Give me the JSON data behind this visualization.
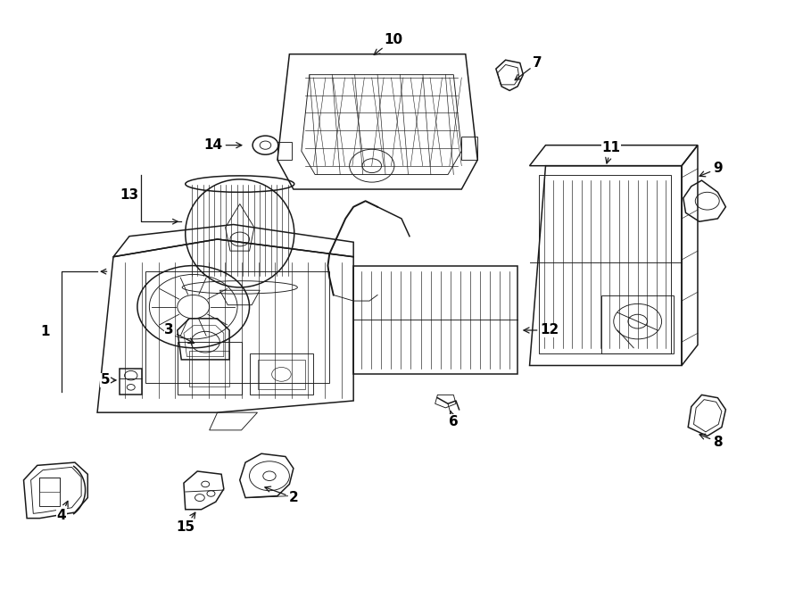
{
  "bg_color": "#ffffff",
  "line_color": "#1a1a1a",
  "fig_width": 9.0,
  "fig_height": 6.61,
  "dpi": 100,
  "label_targets": {
    "1": {
      "lpos": [
        0.055,
        0.48
      ],
      "tpos": [
        0.12,
        0.48
      ],
      "bracket": true
    },
    "2": {
      "lpos": [
        0.365,
        0.155
      ],
      "tpos": [
        0.325,
        0.175
      ],
      "bracket": false
    },
    "3": {
      "lpos": [
        0.21,
        0.44
      ],
      "tpos": [
        0.245,
        0.415
      ],
      "bracket": false
    },
    "4": {
      "lpos": [
        0.075,
        0.125
      ],
      "tpos": [
        0.085,
        0.155
      ],
      "bracket": false
    },
    "5": {
      "lpos": [
        0.13,
        0.355
      ],
      "tpos": [
        0.148,
        0.355
      ],
      "bracket": false
    },
    "6": {
      "lpos": [
        0.565,
        0.285
      ],
      "tpos": [
        0.56,
        0.308
      ],
      "bracket": false
    },
    "7": {
      "lpos": [
        0.67,
        0.895
      ],
      "tpos": [
        0.638,
        0.862
      ],
      "bracket": false
    },
    "8": {
      "lpos": [
        0.895,
        0.25
      ],
      "tpos": [
        0.868,
        0.265
      ],
      "bracket": false
    },
    "9": {
      "lpos": [
        0.895,
        0.715
      ],
      "tpos": [
        0.868,
        0.7
      ],
      "bracket": false
    },
    "10": {
      "lpos": [
        0.49,
        0.935
      ],
      "tpos": [
        0.462,
        0.905
      ],
      "bracket": false
    },
    "11": {
      "lpos": [
        0.762,
        0.75
      ],
      "tpos": [
        0.755,
        0.718
      ],
      "bracket": false
    },
    "12": {
      "lpos": [
        0.685,
        0.44
      ],
      "tpos": [
        0.648,
        0.44
      ],
      "bracket": false
    },
    "13": {
      "lpos": [
        0.16,
        0.635
      ],
      "tpos": [
        0.225,
        0.595
      ],
      "bracket": true
    },
    "14": {
      "lpos": [
        0.265,
        0.755
      ],
      "tpos": [
        0.305,
        0.755
      ],
      "bracket": false
    },
    "15": {
      "lpos": [
        0.23,
        0.105
      ],
      "tpos": [
        0.245,
        0.135
      ],
      "bracket": false
    }
  }
}
